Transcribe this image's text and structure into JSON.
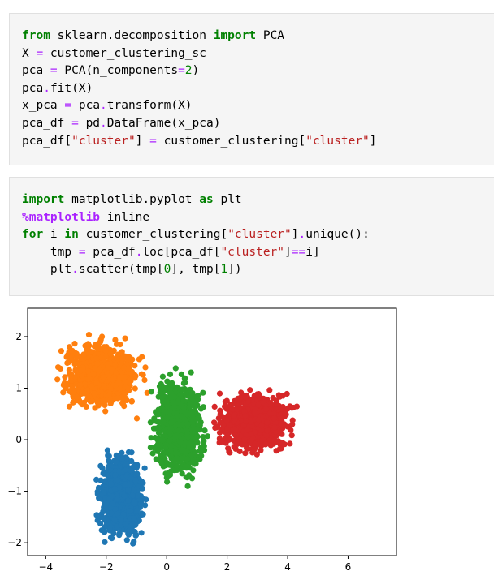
{
  "cells": [
    {
      "lines": [
        [
          {
            "t": "from",
            "c": "kw"
          },
          {
            "t": " sklearn.decomposition ",
            "c": "nm"
          },
          {
            "t": "import",
            "c": "kw"
          },
          {
            "t": " PCA",
            "c": "nm"
          }
        ],
        [
          {
            "t": "X ",
            "c": "nm"
          },
          {
            "t": "=",
            "c": "op"
          },
          {
            "t": " customer_clustering_sc",
            "c": "nm"
          }
        ],
        [
          {
            "t": "pca ",
            "c": "nm"
          },
          {
            "t": "=",
            "c": "op"
          },
          {
            "t": " PCA(n_components",
            "c": "nm"
          },
          {
            "t": "=",
            "c": "op"
          },
          {
            "t": "2",
            "c": "num"
          },
          {
            "t": ")",
            "c": "nm"
          }
        ],
        [
          {
            "t": "pca",
            "c": "nm"
          },
          {
            "t": ".",
            "c": "op"
          },
          {
            "t": "fit(X)",
            "c": "nm"
          }
        ],
        [
          {
            "t": "x_pca ",
            "c": "nm"
          },
          {
            "t": "=",
            "c": "op"
          },
          {
            "t": " pca",
            "c": "nm"
          },
          {
            "t": ".",
            "c": "op"
          },
          {
            "t": "transform(X)",
            "c": "nm"
          }
        ],
        [
          {
            "t": "pca_df ",
            "c": "nm"
          },
          {
            "t": "=",
            "c": "op"
          },
          {
            "t": " pd",
            "c": "nm"
          },
          {
            "t": ".",
            "c": "op"
          },
          {
            "t": "DataFrame(x_pca)",
            "c": "nm"
          }
        ],
        [
          {
            "t": "pca_df[",
            "c": "nm"
          },
          {
            "t": "\"cluster\"",
            "c": "str"
          },
          {
            "t": "] ",
            "c": "nm"
          },
          {
            "t": "=",
            "c": "op"
          },
          {
            "t": " customer_clustering[",
            "c": "nm"
          },
          {
            "t": "\"cluster\"",
            "c": "str"
          },
          {
            "t": "]",
            "c": "nm"
          }
        ]
      ]
    },
    {
      "lines": [
        [
          {
            "t": "import",
            "c": "kw"
          },
          {
            "t": " matplotlib.pyplot ",
            "c": "nm"
          },
          {
            "t": "as",
            "c": "kw"
          },
          {
            "t": " plt",
            "c": "nm"
          }
        ],
        [
          {
            "t": "%matplotlib",
            "c": "mg"
          },
          {
            "t": " inline",
            "c": "nm"
          }
        ],
        [
          {
            "t": "for",
            "c": "kw"
          },
          {
            "t": " i ",
            "c": "nm"
          },
          {
            "t": "in",
            "c": "kw"
          },
          {
            "t": " customer_clustering[",
            "c": "nm"
          },
          {
            "t": "\"cluster\"",
            "c": "str"
          },
          {
            "t": "]",
            "c": "nm"
          },
          {
            "t": ".",
            "c": "op"
          },
          {
            "t": "unique():",
            "c": "nm"
          }
        ],
        [
          {
            "t": "    tmp ",
            "c": "nm"
          },
          {
            "t": "=",
            "c": "op"
          },
          {
            "t": " pca_df",
            "c": "nm"
          },
          {
            "t": ".",
            "c": "op"
          },
          {
            "t": "loc[pca_df[",
            "c": "nm"
          },
          {
            "t": "\"cluster\"",
            "c": "str"
          },
          {
            "t": "]",
            "c": "nm"
          },
          {
            "t": "==",
            "c": "op"
          },
          {
            "t": "i]",
            "c": "nm"
          }
        ],
        [
          {
            "t": "    plt",
            "c": "nm"
          },
          {
            "t": ".",
            "c": "op"
          },
          {
            "t": "scatter(tmp[",
            "c": "nm"
          },
          {
            "t": "0",
            "c": "num"
          },
          {
            "t": "], tmp[",
            "c": "nm"
          },
          {
            "t": "1",
            "c": "num"
          },
          {
            "t": "])",
            "c": "nm"
          }
        ]
      ]
    }
  ],
  "chart_data": {
    "type": "scatter",
    "title": "",
    "xlabel": "",
    "ylabel": "",
    "xlim": [
      -4.6,
      7.6
    ],
    "ylim": [
      -2.25,
      2.55
    ],
    "xticks": [
      -4,
      -2,
      0,
      2,
      4,
      6
    ],
    "yticks": [
      -2,
      -1,
      0,
      1,
      2
    ],
    "grid": false,
    "series": [
      {
        "color": "#1f77b4",
        "center": [
          -1.5,
          -1.1
        ],
        "spread": [
          0.45,
          0.5
        ],
        "x_range": [
          -2.6,
          0.2
        ],
        "y_range": [
          -2.1,
          -0.1
        ]
      },
      {
        "color": "#ff7f0e",
        "center": [
          -2.2,
          1.25
        ],
        "spread": [
          0.75,
          0.4
        ],
        "x_range": [
          -4.4,
          -0.4
        ],
        "y_range": [
          0.3,
          2.45
        ]
      },
      {
        "color": "#2ca02c",
        "center": [
          0.4,
          0.25
        ],
        "spread": [
          0.5,
          0.6
        ],
        "x_range": [
          -0.8,
          1.7
        ],
        "y_range": [
          -1.2,
          1.7
        ]
      },
      {
        "color": "#d62728",
        "center": [
          2.9,
          0.35
        ],
        "spread": [
          0.75,
          0.35
        ],
        "x_range": [
          1.4,
          7.1
        ],
        "y_range": [
          -0.5,
          1.3
        ]
      }
    ]
  }
}
